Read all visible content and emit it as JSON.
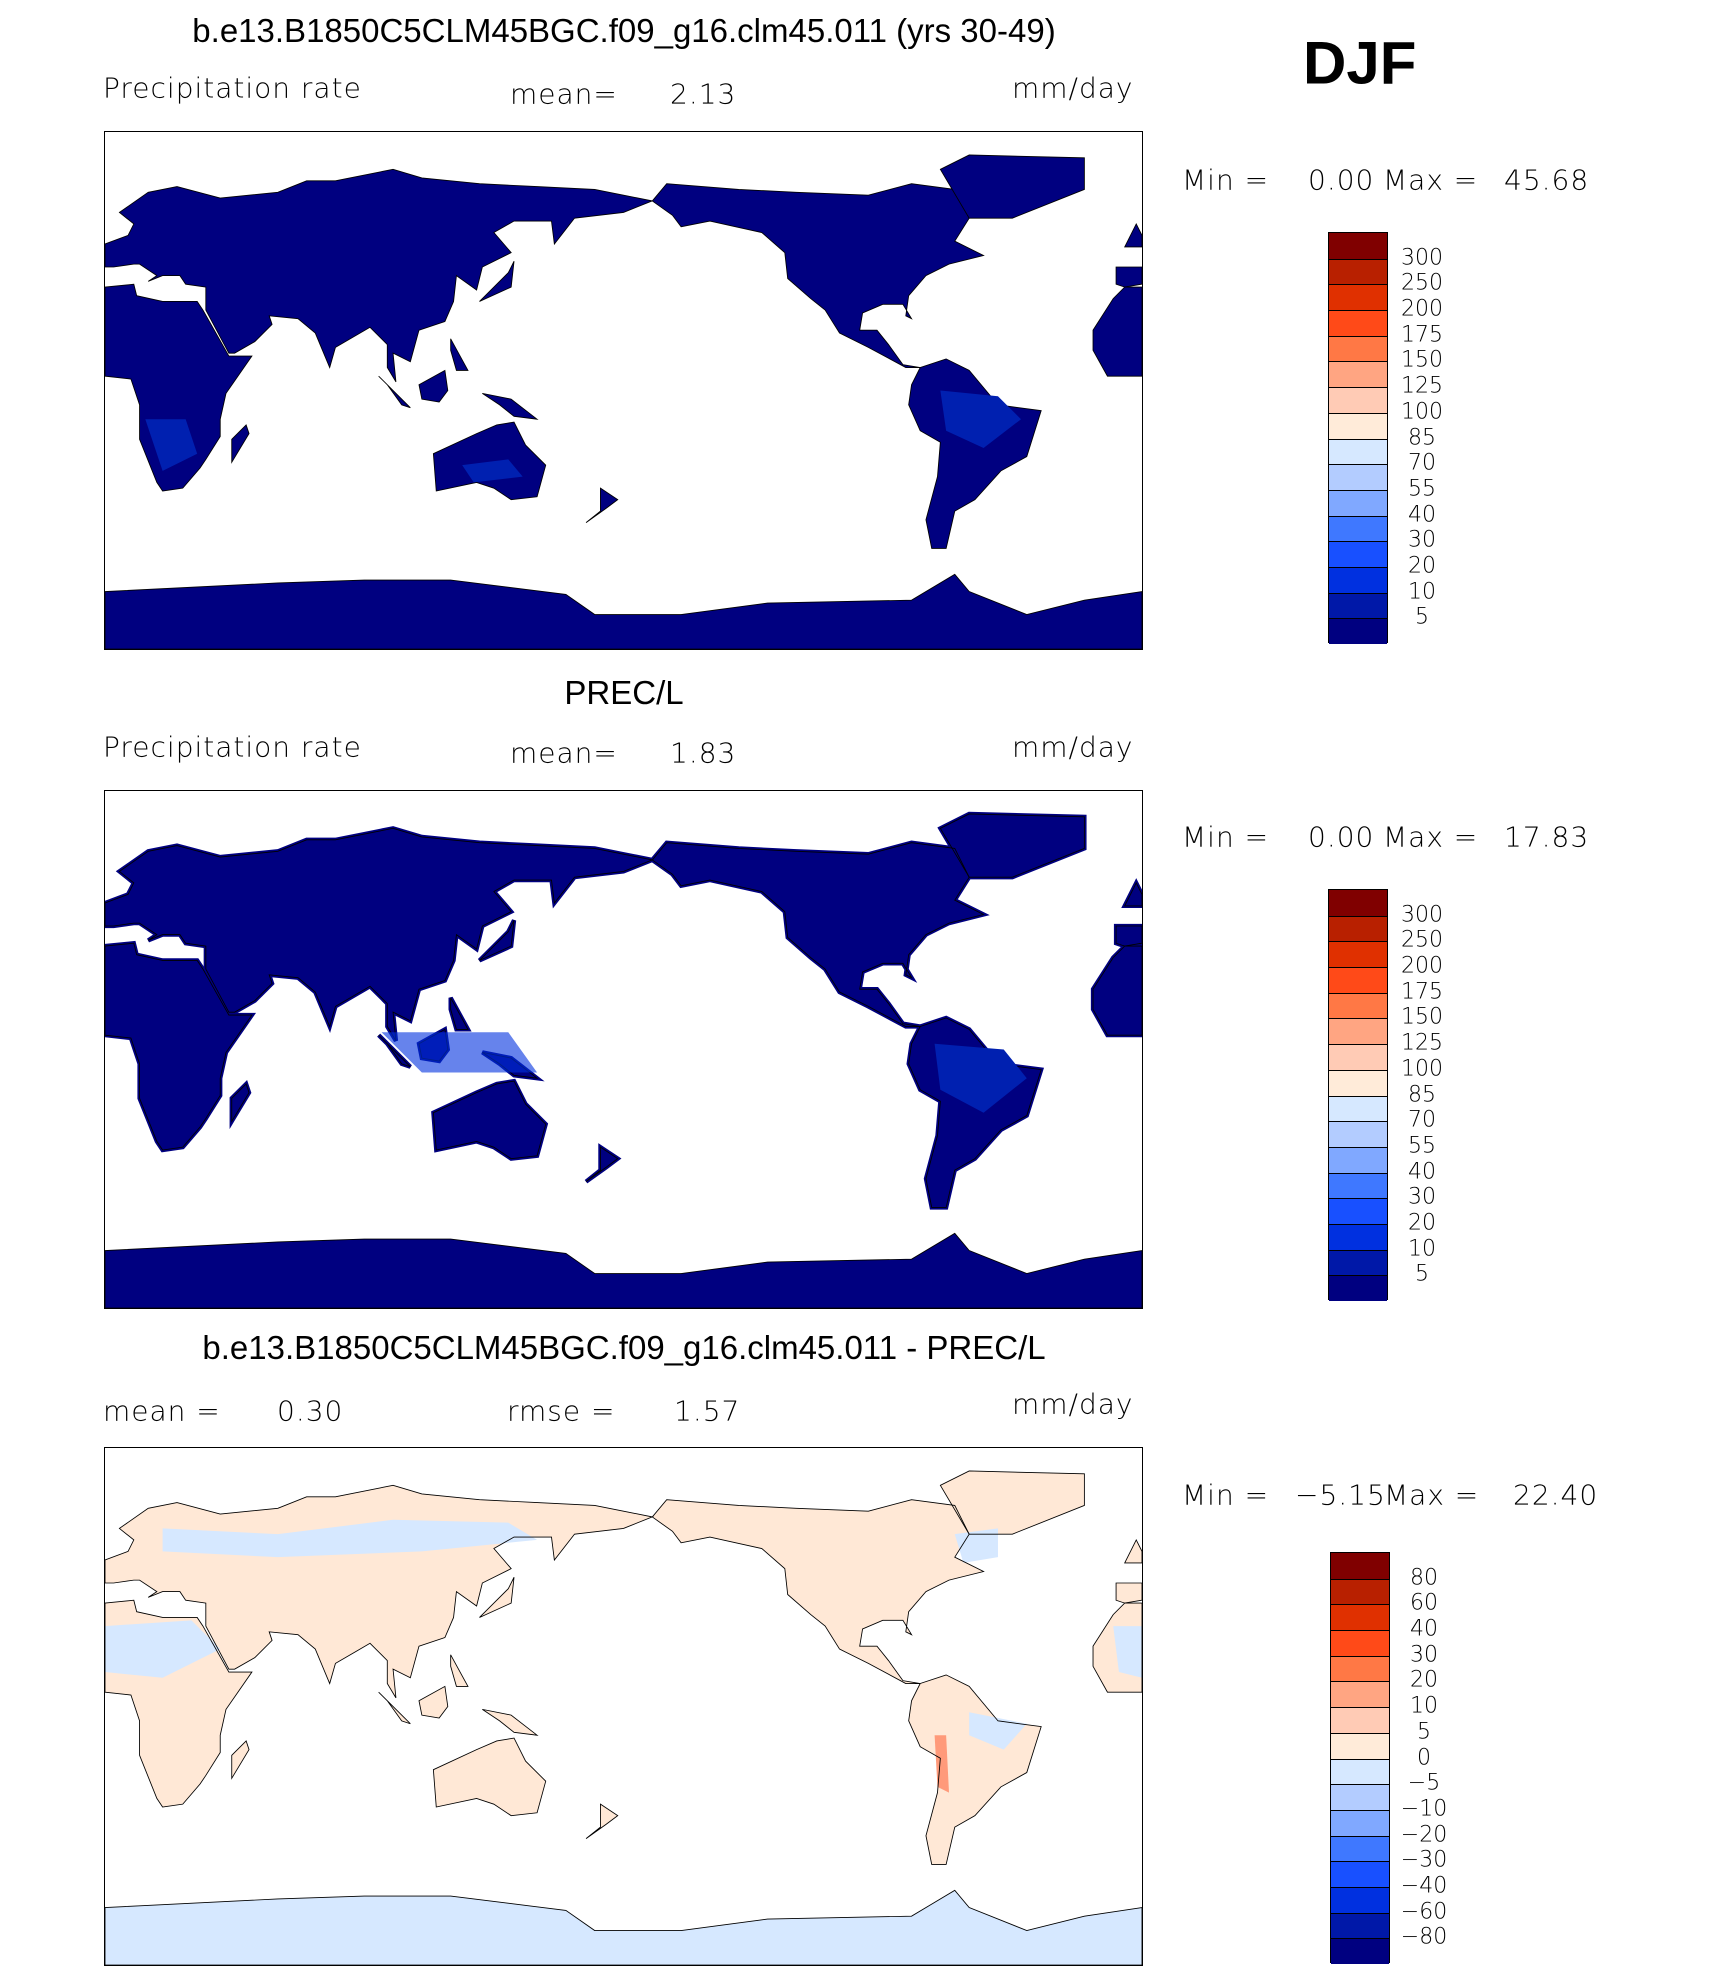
{
  "season": "DJF",
  "panels": [
    {
      "title": "b.e13.B1850C5CLM45BGC.f09_g16.clm45.011 (yrs 30-49)",
      "variable": "Precipitation rate",
      "mean_label": "mean=",
      "mean": "2.13",
      "units": "mm/day",
      "min_label": "Min =",
      "min": "0.00",
      "max_label": "Max =",
      "max": "45.68"
    },
    {
      "title": "PREC/L",
      "variable": "Precipitation rate",
      "mean_label": "mean=",
      "mean": "1.83",
      "units": "mm/day",
      "min_label": "Min =",
      "min": "0.00",
      "max_label": "Max =",
      "max": "17.83"
    },
    {
      "title": "b.e13.B1850C5CLM45BGC.f09_g16.clm45.011 - PREC/L",
      "mean_label": "mean =",
      "mean": "0.30",
      "rmse_label": "rmse =",
      "rmse": "1.57",
      "units": "mm/day",
      "min_label": "Min =",
      "min": "−5.15",
      "max_label": "Max =",
      "max": "22.40"
    }
  ],
  "chart_data": [
    {
      "type": "heatmap",
      "title": "b.e13.B1850C5CLM45BGC.f09_g16.clm45.011 (yrs 30-49)",
      "projection": "cylindrical equidistant, 0-360E",
      "variable": "Precipitation rate",
      "units": "mm/day",
      "mean": 2.13,
      "min": 0.0,
      "max": 45.68,
      "colorbar_levels": [
        "300",
        "250",
        "200",
        "175",
        "150",
        "125",
        "100",
        "85",
        "70",
        "55",
        "40",
        "30",
        "20",
        "10",
        "5"
      ]
    },
    {
      "type": "heatmap",
      "title": "PREC/L",
      "projection": "cylindrical equidistant, 0-360E",
      "variable": "Precipitation rate",
      "units": "mm/day",
      "mean": 1.83,
      "min": 0.0,
      "max": 17.83,
      "colorbar_levels": [
        "300",
        "250",
        "200",
        "175",
        "150",
        "125",
        "100",
        "85",
        "70",
        "55",
        "40",
        "30",
        "20",
        "10",
        "5"
      ]
    },
    {
      "type": "heatmap",
      "title": "b.e13.B1850C5CLM45BGC.f09_g16.clm45.011 - PREC/L",
      "projection": "cylindrical equidistant, 0-360E",
      "units": "mm/day",
      "mean": 0.3,
      "rmse": 1.57,
      "min": -5.15,
      "max": 22.4,
      "colorbar_levels": [
        "80",
        "60",
        "40",
        "30",
        "20",
        "10",
        "5",
        "0",
        "−5",
        "−10",
        "−20",
        "−30",
        "−40",
        "−60",
        "−80"
      ]
    }
  ],
  "colorbar_colors": [
    "#800000",
    "#b82000",
    "#e03000",
    "#ff4a18",
    "#ff7845",
    "#ffa582",
    "#ffcbb5",
    "#ffebd9",
    "#d6e8ff",
    "#b3ccff",
    "#80a8ff",
    "#3f78ff",
    "#1850ff",
    "#0030e0",
    "#0018a8",
    "#000080"
  ],
  "map_colors": {
    "abs_land": "#000080",
    "abs_patch": "#0020b0",
    "diff_pos": "#ffe8d6",
    "diff_neg": "#d6e8ff",
    "diff_hot": "#ff9a7a"
  }
}
